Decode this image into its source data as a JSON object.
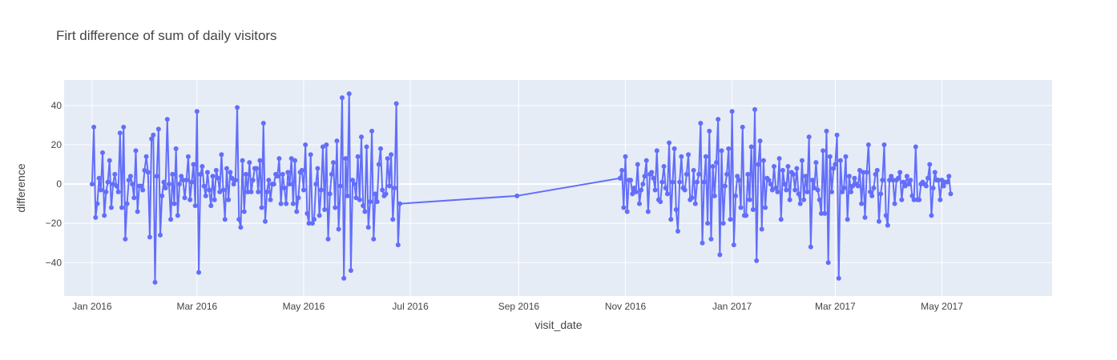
{
  "chart_data": {
    "type": "line",
    "mode": "lines+markers",
    "title": "Firt difference of sum of daily visitors",
    "xlabel": "visit_date",
    "ylabel": "difference",
    "xlim": [
      "2015-12-16",
      "2017-07-03"
    ],
    "ylim": [
      -57,
      53
    ],
    "grid": true,
    "legend": "none",
    "colors": {
      "line": "#636efa",
      "plot_bg": "#e5ecf6",
      "grid": "#ffffff",
      "text": "#444444"
    },
    "x_ticks": [
      {
        "date": "2016-01-01",
        "label": "Jan 2016"
      },
      {
        "date": "2016-03-01",
        "label": "Mar 2016"
      },
      {
        "date": "2016-05-01",
        "label": "May 2016"
      },
      {
        "date": "2016-07-01",
        "label": "Jul 2016"
      },
      {
        "date": "2016-09-01",
        "label": "Sep 2016"
      },
      {
        "date": "2016-11-01",
        "label": "Nov 2016"
      },
      {
        "date": "2017-01-01",
        "label": "Jan 2017"
      },
      {
        "date": "2017-03-01",
        "label": "Mar 2017"
      },
      {
        "date": "2017-05-01",
        "label": "May 2017"
      }
    ],
    "y_ticks": [
      {
        "value": 40,
        "label": "40"
      },
      {
        "value": 20,
        "label": "20"
      },
      {
        "value": 0,
        "label": "0"
      },
      {
        "value": -20,
        "label": "−20"
      },
      {
        "value": -40,
        "label": "−40"
      }
    ],
    "series": [
      {
        "segments": [
          {
            "start": "2016-01-01",
            "values": [
              0,
              29,
              -17,
              -10,
              3,
              -3,
              16,
              -16,
              -4,
              1,
              12,
              -12,
              0,
              5,
              -1,
              -4,
              26,
              -12,
              29,
              -28,
              -10,
              2,
              4,
              0,
              -7,
              17,
              -14,
              -1,
              -1,
              -3,
              7,
              14,
              6,
              -27,
              23,
              25,
              -50,
              4,
              28,
              -26,
              -6,
              1,
              -2,
              33,
              0,
              -18,
              5,
              -10,
              18,
              -16,
              0,
              4,
              2,
              -7,
              2,
              14,
              -8,
              1,
              10,
              -11,
              37,
              -45,
              5,
              9,
              -1,
              -6,
              6,
              -3,
              -11,
              4,
              -8,
              7,
              3,
              -4,
              15,
              -3,
              -18,
              8,
              -8,
              6,
              3,
              0,
              2,
              39,
              -18,
              -22,
              12,
              -14,
              5,
              -4,
              11,
              -4,
              2,
              8,
              8,
              -4,
              12,
              -12,
              31,
              -19,
              -4,
              2,
              -8,
              0,
              0,
              5,
              4,
              13,
              -10,
              5,
              -2,
              -10,
              6,
              0,
              13,
              -10,
              12,
              -14,
              -7,
              6,
              7,
              -3,
              20,
              -15,
              -20,
              15,
              -20,
              -18,
              0,
              8,
              -16,
              -3,
              19,
              -13,
              20,
              -28,
              -5,
              5,
              11,
              -12,
              22,
              -23,
              -1,
              44,
              -48,
              13,
              -6,
              46,
              -44,
              2,
              0,
              -7,
              14,
              -8,
              24,
              -11,
              -14,
              19,
              -22,
              -9,
              27,
              -28,
              -5,
              -9,
              10,
              18,
              -3,
              -6,
              -5,
              13,
              -1,
              15,
              -18,
              -2,
              41,
              -31,
              -10
            ]
          },
          {
            "start": "2016-08-31",
            "values": [
              -6
            ]
          },
          {
            "start": "2016-10-29",
            "values": [
              3,
              7,
              -12,
              14,
              -14,
              2,
              2,
              -5,
              -2,
              -4,
              10,
              -10,
              -3,
              0,
              4,
              12,
              -14,
              5,
              6,
              3,
              -3,
              17,
              -8,
              -9,
              1,
              9,
              -2,
              -5,
              21,
              -18,
              1,
              18,
              -13,
              -24,
              1,
              14,
              -2,
              -3,
              5,
              15,
              -8,
              -7,
              7,
              -10,
              1,
              5,
              31,
              -30,
              1,
              14,
              -20,
              27,
              -28,
              9,
              -6,
              11,
              33,
              -36,
              17,
              -20,
              -1,
              5,
              18,
              -18,
              37,
              -31,
              -6,
              4,
              2,
              -12,
              29,
              -16,
              -16,
              5,
              -8,
              19,
              -13,
              38,
              -39,
              10,
              22,
              -23,
              12,
              -12,
              3,
              2,
              0,
              -3,
              9,
              -2,
              -4,
              13,
              -18,
              7,
              0,
              -3,
              9,
              -8,
              6,
              5,
              -3,
              8,
              -5,
              -10,
              12,
              -8,
              4,
              -4,
              24,
              -32,
              2,
              -2,
              11,
              -3,
              -8,
              -15,
              17,
              -15,
              27,
              -40,
              14,
              -4,
              8,
              10,
              25,
              -48,
              12,
              -4,
              -2,
              14,
              -18,
              4,
              -4,
              -1,
              3,
              0,
              -1,
              7,
              -10,
              6,
              -17,
              6,
              20,
              -4,
              -6,
              -2,
              5,
              7,
              -19,
              -5,
              2,
              20,
              -16,
              -21,
              2,
              4,
              2,
              -10,
              2,
              3,
              6,
              -8,
              1,
              -1,
              4,
              0,
              2,
              -6,
              -8,
              19,
              -8,
              -8,
              0,
              1,
              0,
              -1,
              3,
              10,
              -16,
              -2,
              6,
              2,
              2,
              -8,
              2,
              -1,
              1,
              1,
              4,
              -5
            ]
          }
        ]
      }
    ]
  }
}
